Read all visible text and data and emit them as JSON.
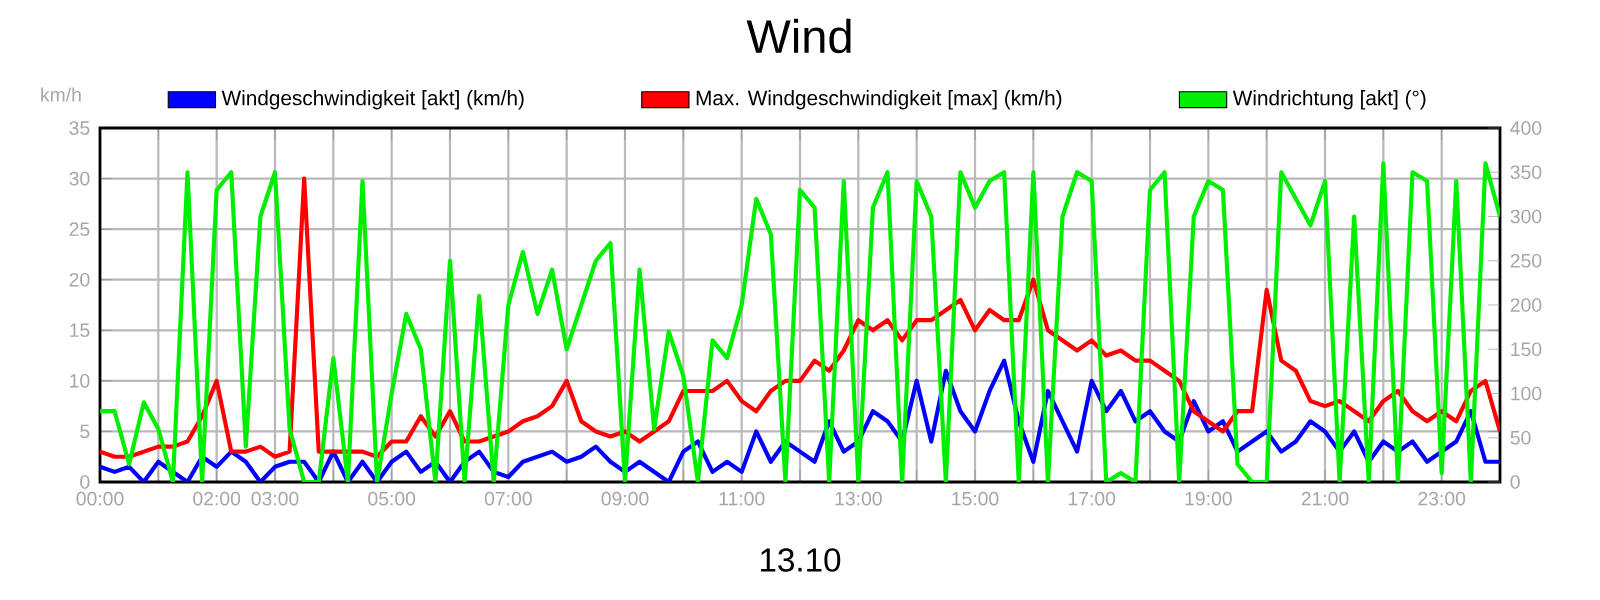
{
  "chart_data": {
    "type": "line",
    "title": "Wind",
    "xlabel": "13.10",
    "ylabel": "km/h",
    "x": [
      0,
      0.25,
      0.5,
      0.75,
      1,
      1.25,
      1.5,
      1.75,
      2,
      2.25,
      2.5,
      2.75,
      3,
      3.25,
      3.5,
      3.75,
      4,
      4.25,
      4.5,
      4.75,
      5,
      5.25,
      5.5,
      5.75,
      6,
      6.25,
      6.5,
      6.75,
      7,
      7.25,
      7.5,
      7.75,
      8,
      8.25,
      8.5,
      8.75,
      9,
      9.25,
      9.5,
      9.75,
      10,
      10.25,
      10.5,
      10.75,
      11,
      11.25,
      11.5,
      11.75,
      12,
      12.25,
      12.5,
      12.75,
      13,
      13.25,
      13.5,
      13.75,
      14,
      14.25,
      14.5,
      14.75,
      15,
      15.25,
      15.5,
      15.75,
      16,
      16.25,
      16.5,
      16.75,
      17,
      17.25,
      17.5,
      17.75,
      18,
      18.25,
      18.5,
      18.75,
      19,
      19.25,
      19.5,
      19.75,
      20,
      20.25,
      20.5,
      20.75,
      21,
      21.25,
      21.5,
      21.75,
      22,
      22.25,
      22.5,
      22.75,
      23,
      23.25,
      23.5,
      23.75,
      24
    ],
    "series": [
      {
        "name": "Windgeschwindigkeit [akt] (km/h)",
        "color": "#0000ff",
        "values": [
          1.5,
          1,
          1.5,
          0,
          2,
          1,
          0,
          2.5,
          1.5,
          3,
          2,
          0,
          1.5,
          2,
          2,
          0,
          3,
          0,
          2,
          0,
          2,
          3,
          1,
          2,
          0,
          2,
          3,
          1,
          0.5,
          2,
          2.5,
          3,
          2,
          2.5,
          3.5,
          2,
          1,
          2,
          1,
          0,
          3,
          4,
          1,
          2,
          1,
          5,
          2,
          4,
          3,
          2,
          6,
          3,
          4,
          7,
          6,
          4,
          10,
          4,
          11,
          7,
          5,
          9,
          12,
          6,
          2,
          9,
          6,
          3,
          10,
          7,
          9,
          6,
          7,
          5,
          4,
          8,
          5,
          6,
          3,
          4,
          5,
          3,
          4,
          6,
          5,
          3,
          5,
          2,
          4,
          3,
          4,
          2,
          3,
          4,
          7,
          2,
          2
        ]
      },
      {
        "name": "Max. Windgeschwindigkeit [max] (km/h)",
        "color": "#ff0000",
        "values": [
          3,
          2.5,
          2.5,
          3,
          3.5,
          3.5,
          4,
          6.5,
          10,
          3,
          3,
          3.5,
          2.5,
          3,
          30,
          3,
          3,
          3,
          3,
          2.5,
          4,
          4,
          6.5,
          4.5,
          7,
          4,
          4,
          4.5,
          5,
          6,
          6.5,
          7.5,
          10,
          6,
          5,
          4.5,
          5,
          4,
          5,
          6,
          9,
          9,
          9,
          10,
          8,
          7,
          9,
          10,
          10,
          12,
          11,
          13,
          16,
          15,
          16,
          14,
          16,
          16,
          17,
          18,
          15,
          17,
          16,
          16,
          20,
          15,
          14,
          13,
          14,
          12.5,
          13,
          12,
          12,
          11,
          10,
          7,
          6,
          5,
          7,
          7,
          19,
          12,
          11,
          8,
          7.5,
          8,
          7,
          6,
          8,
          9,
          7,
          6,
          7,
          6,
          9,
          10,
          5
        ]
      },
      {
        "name": "Windrichtung [akt] (°)",
        "color": "#00ee00",
        "axis": "y2",
        "values": [
          80,
          80,
          20,
          90,
          60,
          0,
          350,
          0,
          330,
          350,
          40,
          300,
          350,
          60,
          0,
          0,
          140,
          0,
          340,
          0,
          100,
          190,
          150,
          0,
          250,
          0,
          210,
          0,
          200,
          260,
          190,
          240,
          150,
          200,
          250,
          270,
          0,
          240,
          60,
          170,
          120,
          0,
          160,
          140,
          200,
          320,
          280,
          0,
          330,
          310,
          0,
          340,
          0,
          310,
          350,
          0,
          340,
          300,
          0,
          350,
          310,
          340,
          350,
          0,
          350,
          0,
          300,
          350,
          340,
          0,
          10,
          0,
          330,
          350,
          0,
          300,
          340,
          330,
          20,
          0,
          0,
          350,
          320,
          290,
          340,
          0,
          300,
          0,
          360,
          0,
          350,
          340,
          10,
          340,
          0,
          360,
          300
        ]
      }
    ],
    "xlim": [
      0,
      24
    ],
    "xticks": [
      {
        "value": 0,
        "label": "00:00"
      },
      {
        "value": 1,
        "label": null
      },
      {
        "value": 2,
        "label": "02:00"
      },
      {
        "value": 3,
        "label": "03:00"
      },
      {
        "value": 4,
        "label": null
      },
      {
        "value": 5,
        "label": "05:00"
      },
      {
        "value": 6,
        "label": null
      },
      {
        "value": 7,
        "label": "07:00"
      },
      {
        "value": 8,
        "label": null
      },
      {
        "value": 9,
        "label": "09:00"
      },
      {
        "value": 10,
        "label": null
      },
      {
        "value": 11,
        "label": "11:00"
      },
      {
        "value": 12,
        "label": null
      },
      {
        "value": 13,
        "label": "13:00"
      },
      {
        "value": 14,
        "label": null
      },
      {
        "value": 15,
        "label": "15:00"
      },
      {
        "value": 16,
        "label": null
      },
      {
        "value": 17,
        "label": "17:00"
      },
      {
        "value": 18,
        "label": null
      },
      {
        "value": 19,
        "label": "19:00"
      },
      {
        "value": 20,
        "label": null
      },
      {
        "value": 21,
        "label": "21:00"
      },
      {
        "value": 22,
        "label": null
      },
      {
        "value": 23,
        "label": "23:00"
      }
    ],
    "ylim": [
      0,
      35
    ],
    "yticks": [
      0,
      5,
      10,
      15,
      20,
      25,
      30,
      35
    ],
    "y2lim": [
      0,
      400
    ],
    "y2ticks": [
      0,
      50,
      100,
      150,
      200,
      250,
      300,
      350,
      400
    ],
    "grid": true,
    "legend": "top",
    "marker": "none",
    "line_style": "solid"
  }
}
